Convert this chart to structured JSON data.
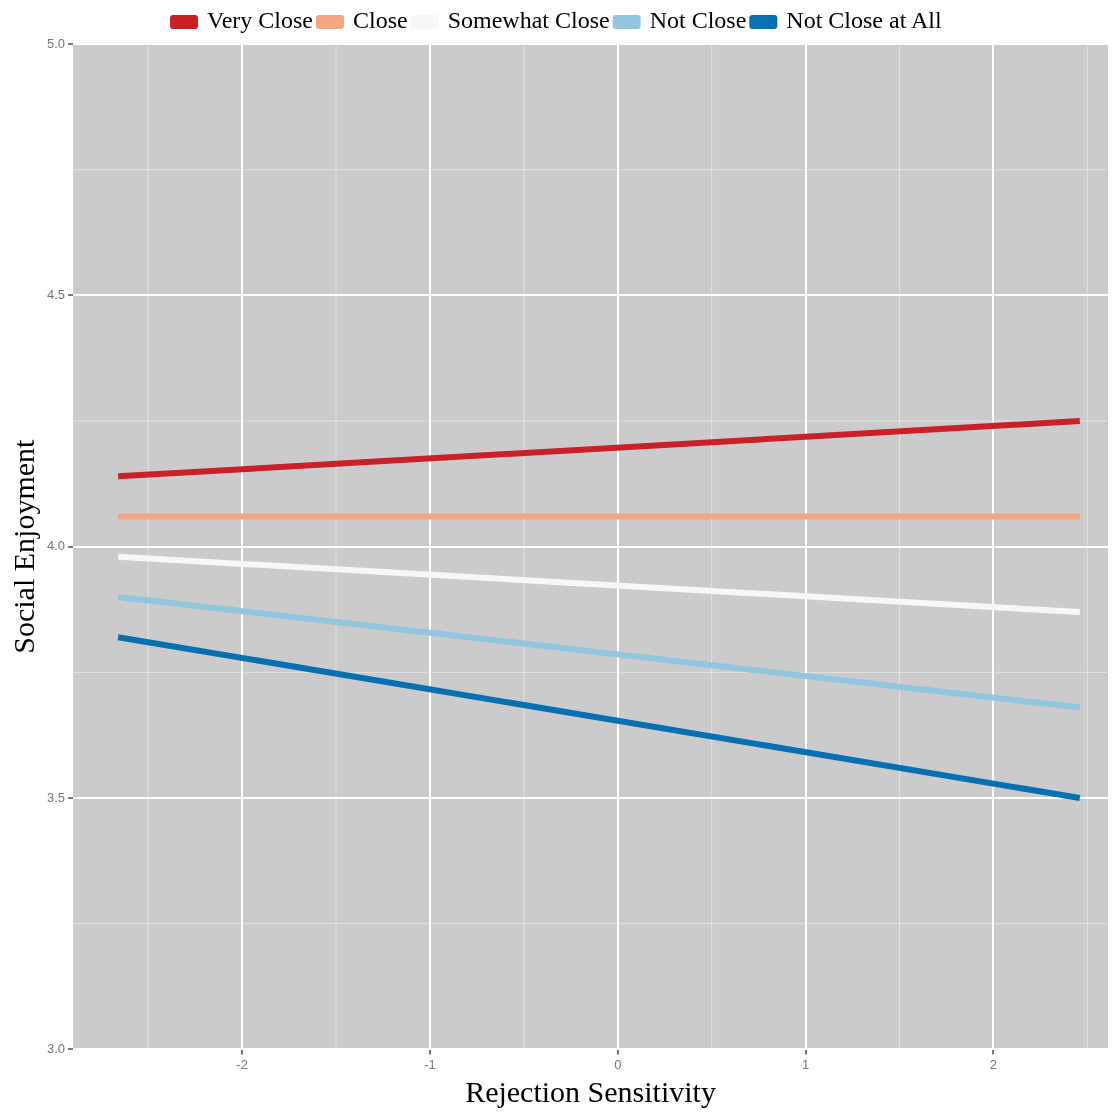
{
  "chart_data": {
    "type": "line",
    "xlabel": "Rejection Sensitivity",
    "ylabel": "Social Enjoyment",
    "x": [
      -2.66,
      2.46
    ],
    "series": [
      {
        "name": "Very Close",
        "color": "#ca2027",
        "values": [
          4.14,
          4.25
        ]
      },
      {
        "name": "Close",
        "color": "#f4a582",
        "values": [
          4.06,
          4.06
        ]
      },
      {
        "name": "Somewhat Close",
        "color": "#f7f7f7",
        "values": [
          3.98,
          3.87
        ]
      },
      {
        "name": "Not Close",
        "color": "#92c5de",
        "values": [
          3.9,
          3.68
        ]
      },
      {
        "name": "Not Close at All",
        "color": "#0571b0",
        "values": [
          3.82,
          3.5
        ]
      }
    ],
    "xlim": [
      -2.9,
      2.61
    ],
    "xticks": [
      -2,
      -1,
      0,
      1,
      2
    ],
    "ylim": [
      3,
      5
    ],
    "yticks": [
      {
        "value": 3,
        "label": "3.0"
      },
      {
        "value": 3.5,
        "label": "3.5"
      },
      {
        "value": 4,
        "label": "4.0"
      },
      {
        "value": 4.5,
        "label": "4.5"
      },
      {
        "value": 5,
        "label": "5.0"
      }
    ],
    "grid": true,
    "legend": "top",
    "marker": "none",
    "line_style": "solid"
  }
}
